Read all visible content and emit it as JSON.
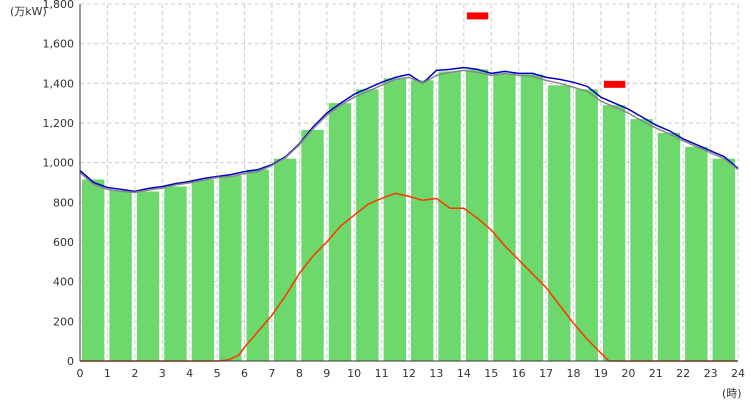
{
  "chart_data": {
    "type": "bar",
    "title": "",
    "ylabel": "(万kW)",
    "xlabel": "(時)",
    "ylim": [
      0,
      1800
    ],
    "xlim": [
      0,
      24
    ],
    "yticks": [
      0,
      200,
      400,
      600,
      800,
      1000,
      1200,
      1400,
      1600,
      1800
    ],
    "ytick_labels": [
      "0",
      "200",
      "400",
      "600",
      "800",
      "1,000",
      "1,200",
      "1,400",
      "1,600",
      "1,800"
    ],
    "xticks": [
      0,
      1,
      2,
      3,
      4,
      5,
      6,
      7,
      8,
      9,
      10,
      11,
      12,
      13,
      14,
      15,
      16,
      17,
      18,
      19,
      20,
      21,
      22,
      23,
      24
    ],
    "xtick_labels": [
      "0",
      "1",
      "2",
      "3",
      "4",
      "5",
      "6",
      "7",
      "8",
      "9",
      "10",
      "11",
      "12",
      "13",
      "14",
      "15",
      "16",
      "17",
      "18",
      "19",
      "20",
      "21",
      "22",
      "23",
      "24"
    ],
    "grid": true,
    "categories": [
      "0",
      "1",
      "2",
      "3",
      "4",
      "5",
      "6",
      "7",
      "8",
      "9",
      "10",
      "11",
      "12",
      "13",
      "14",
      "15",
      "16",
      "17",
      "18",
      "19",
      "20",
      "21",
      "22",
      "23"
    ],
    "series": [
      {
        "kind": "bar",
        "color": "#6dd96d",
        "values": [
          915,
          860,
          855,
          880,
          915,
          935,
          965,
          1020,
          1165,
          1300,
          1370,
          1425,
          1415,
          1460,
          1470,
          1450,
          1445,
          1390,
          1370,
          1290,
          1220,
          1150,
          1080,
          1020
        ]
      },
      {
        "kind": "line",
        "color": "#0000cc",
        "x": [
          0,
          0.5,
          1,
          1.5,
          2,
          2.5,
          3,
          3.5,
          4,
          4.5,
          5,
          5.5,
          6,
          6.5,
          7,
          7.5,
          8,
          8.5,
          9,
          9.5,
          10,
          10.5,
          11,
          11.5,
          12,
          12.5,
          13,
          13.5,
          14,
          14.5,
          15,
          15.5,
          16,
          16.5,
          17,
          17.5,
          18,
          18.5,
          19,
          19.5,
          20,
          20.5,
          21,
          21.5,
          22,
          22.5,
          23,
          23.5,
          24
        ],
        "y": [
          960,
          900,
          875,
          865,
          855,
          870,
          880,
          895,
          905,
          920,
          930,
          940,
          955,
          965,
          990,
          1030,
          1095,
          1180,
          1250,
          1300,
          1345,
          1375,
          1405,
          1430,
          1445,
          1400,
          1465,
          1470,
          1480,
          1470,
          1450,
          1460,
          1450,
          1450,
          1430,
          1420,
          1405,
          1385,
          1330,
          1300,
          1270,
          1230,
          1190,
          1160,
          1120,
          1090,
          1060,
          1030,
          970
        ]
      },
      {
        "kind": "line",
        "color": "#888888",
        "x": [
          0,
          0.5,
          1,
          1.5,
          2,
          2.5,
          3,
          3.5,
          4,
          4.5,
          5,
          5.5,
          6,
          6.5,
          7,
          7.5,
          8,
          8.5,
          9,
          9.5,
          10,
          10.5,
          11,
          11.5,
          12,
          12.5,
          13,
          13.5,
          14,
          14.5,
          15,
          15.5,
          16,
          16.5,
          17,
          17.5,
          18,
          18.5,
          19,
          19.5,
          20,
          20.5,
          21,
          21.5,
          22,
          22.5,
          23,
          23.5,
          24
        ],
        "y": [
          950,
          890,
          865,
          855,
          850,
          862,
          872,
          888,
          898,
          912,
          925,
          930,
          945,
          955,
          985,
          1025,
          1090,
          1170,
          1240,
          1290,
          1330,
          1360,
          1390,
          1420,
          1430,
          1400,
          1440,
          1455,
          1465,
          1455,
          1440,
          1450,
          1440,
          1435,
          1415,
          1400,
          1380,
          1360,
          1310,
          1280,
          1250,
          1210,
          1175,
          1145,
          1110,
          1080,
          1050,
          1020,
          965
        ]
      },
      {
        "kind": "line",
        "color": "#ff3300",
        "x": [
          0,
          1,
          2,
          3,
          4,
          5,
          5.4,
          5.8,
          6,
          6.5,
          7,
          7.5,
          8,
          8.5,
          9,
          9.5,
          10,
          10.5,
          11,
          11.5,
          12,
          12.5,
          13,
          13.5,
          14,
          14.5,
          15,
          15.5,
          16,
          16.5,
          17,
          17.5,
          18,
          18.5,
          19,
          19.3,
          20,
          21,
          22,
          23,
          24
        ],
        "y": [
          0,
          0,
          0,
          0,
          0,
          0,
          5,
          30,
          70,
          150,
          230,
          330,
          440,
          530,
          600,
          680,
          735,
          790,
          820,
          845,
          830,
          810,
          820,
          770,
          770,
          720,
          660,
          580,
          510,
          440,
          370,
          280,
          190,
          110,
          40,
          0,
          0,
          0,
          0,
          0,
          0
        ]
      }
    ],
    "markers": [
      {
        "kind": "band",
        "color": "#ff0000",
        "x_start": 14,
        "x_end": 15,
        "y": 1740
      },
      {
        "kind": "band",
        "color": "#ff0000",
        "x_start": 19,
        "x_end": 20,
        "y": 1395
      }
    ]
  }
}
